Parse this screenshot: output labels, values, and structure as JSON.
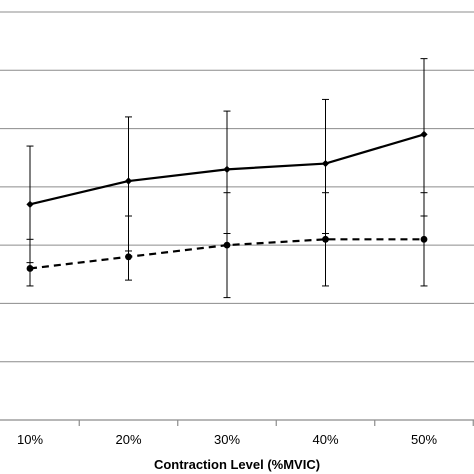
{
  "chart_data": {
    "type": "line",
    "xlabel": "Contraction Level (%MVIC)",
    "categories": [
      "10%",
      "20%",
      "30%",
      "40%",
      "50%"
    ],
    "ylim": [
      0,
      7
    ],
    "ymajor": 1,
    "grid": true,
    "series": [
      {
        "style": "solid",
        "marker": "diamond",
        "color": "#000000",
        "values": [
          3.7,
          4.1,
          4.3,
          4.4,
          4.9
        ],
        "error_low": [
          2.7,
          2.9,
          3.2,
          3.2,
          3.5
        ],
        "error_high": [
          4.7,
          5.2,
          5.3,
          5.5,
          6.2
        ]
      },
      {
        "style": "dashed",
        "marker": "circle",
        "color": "#000000",
        "values": [
          2.6,
          2.8,
          3.0,
          3.1,
          3.1
        ],
        "error_low": [
          2.3,
          2.4,
          2.1,
          2.3,
          2.3
        ],
        "error_high": [
          3.1,
          3.5,
          3.9,
          3.9,
          3.9
        ]
      }
    ]
  }
}
